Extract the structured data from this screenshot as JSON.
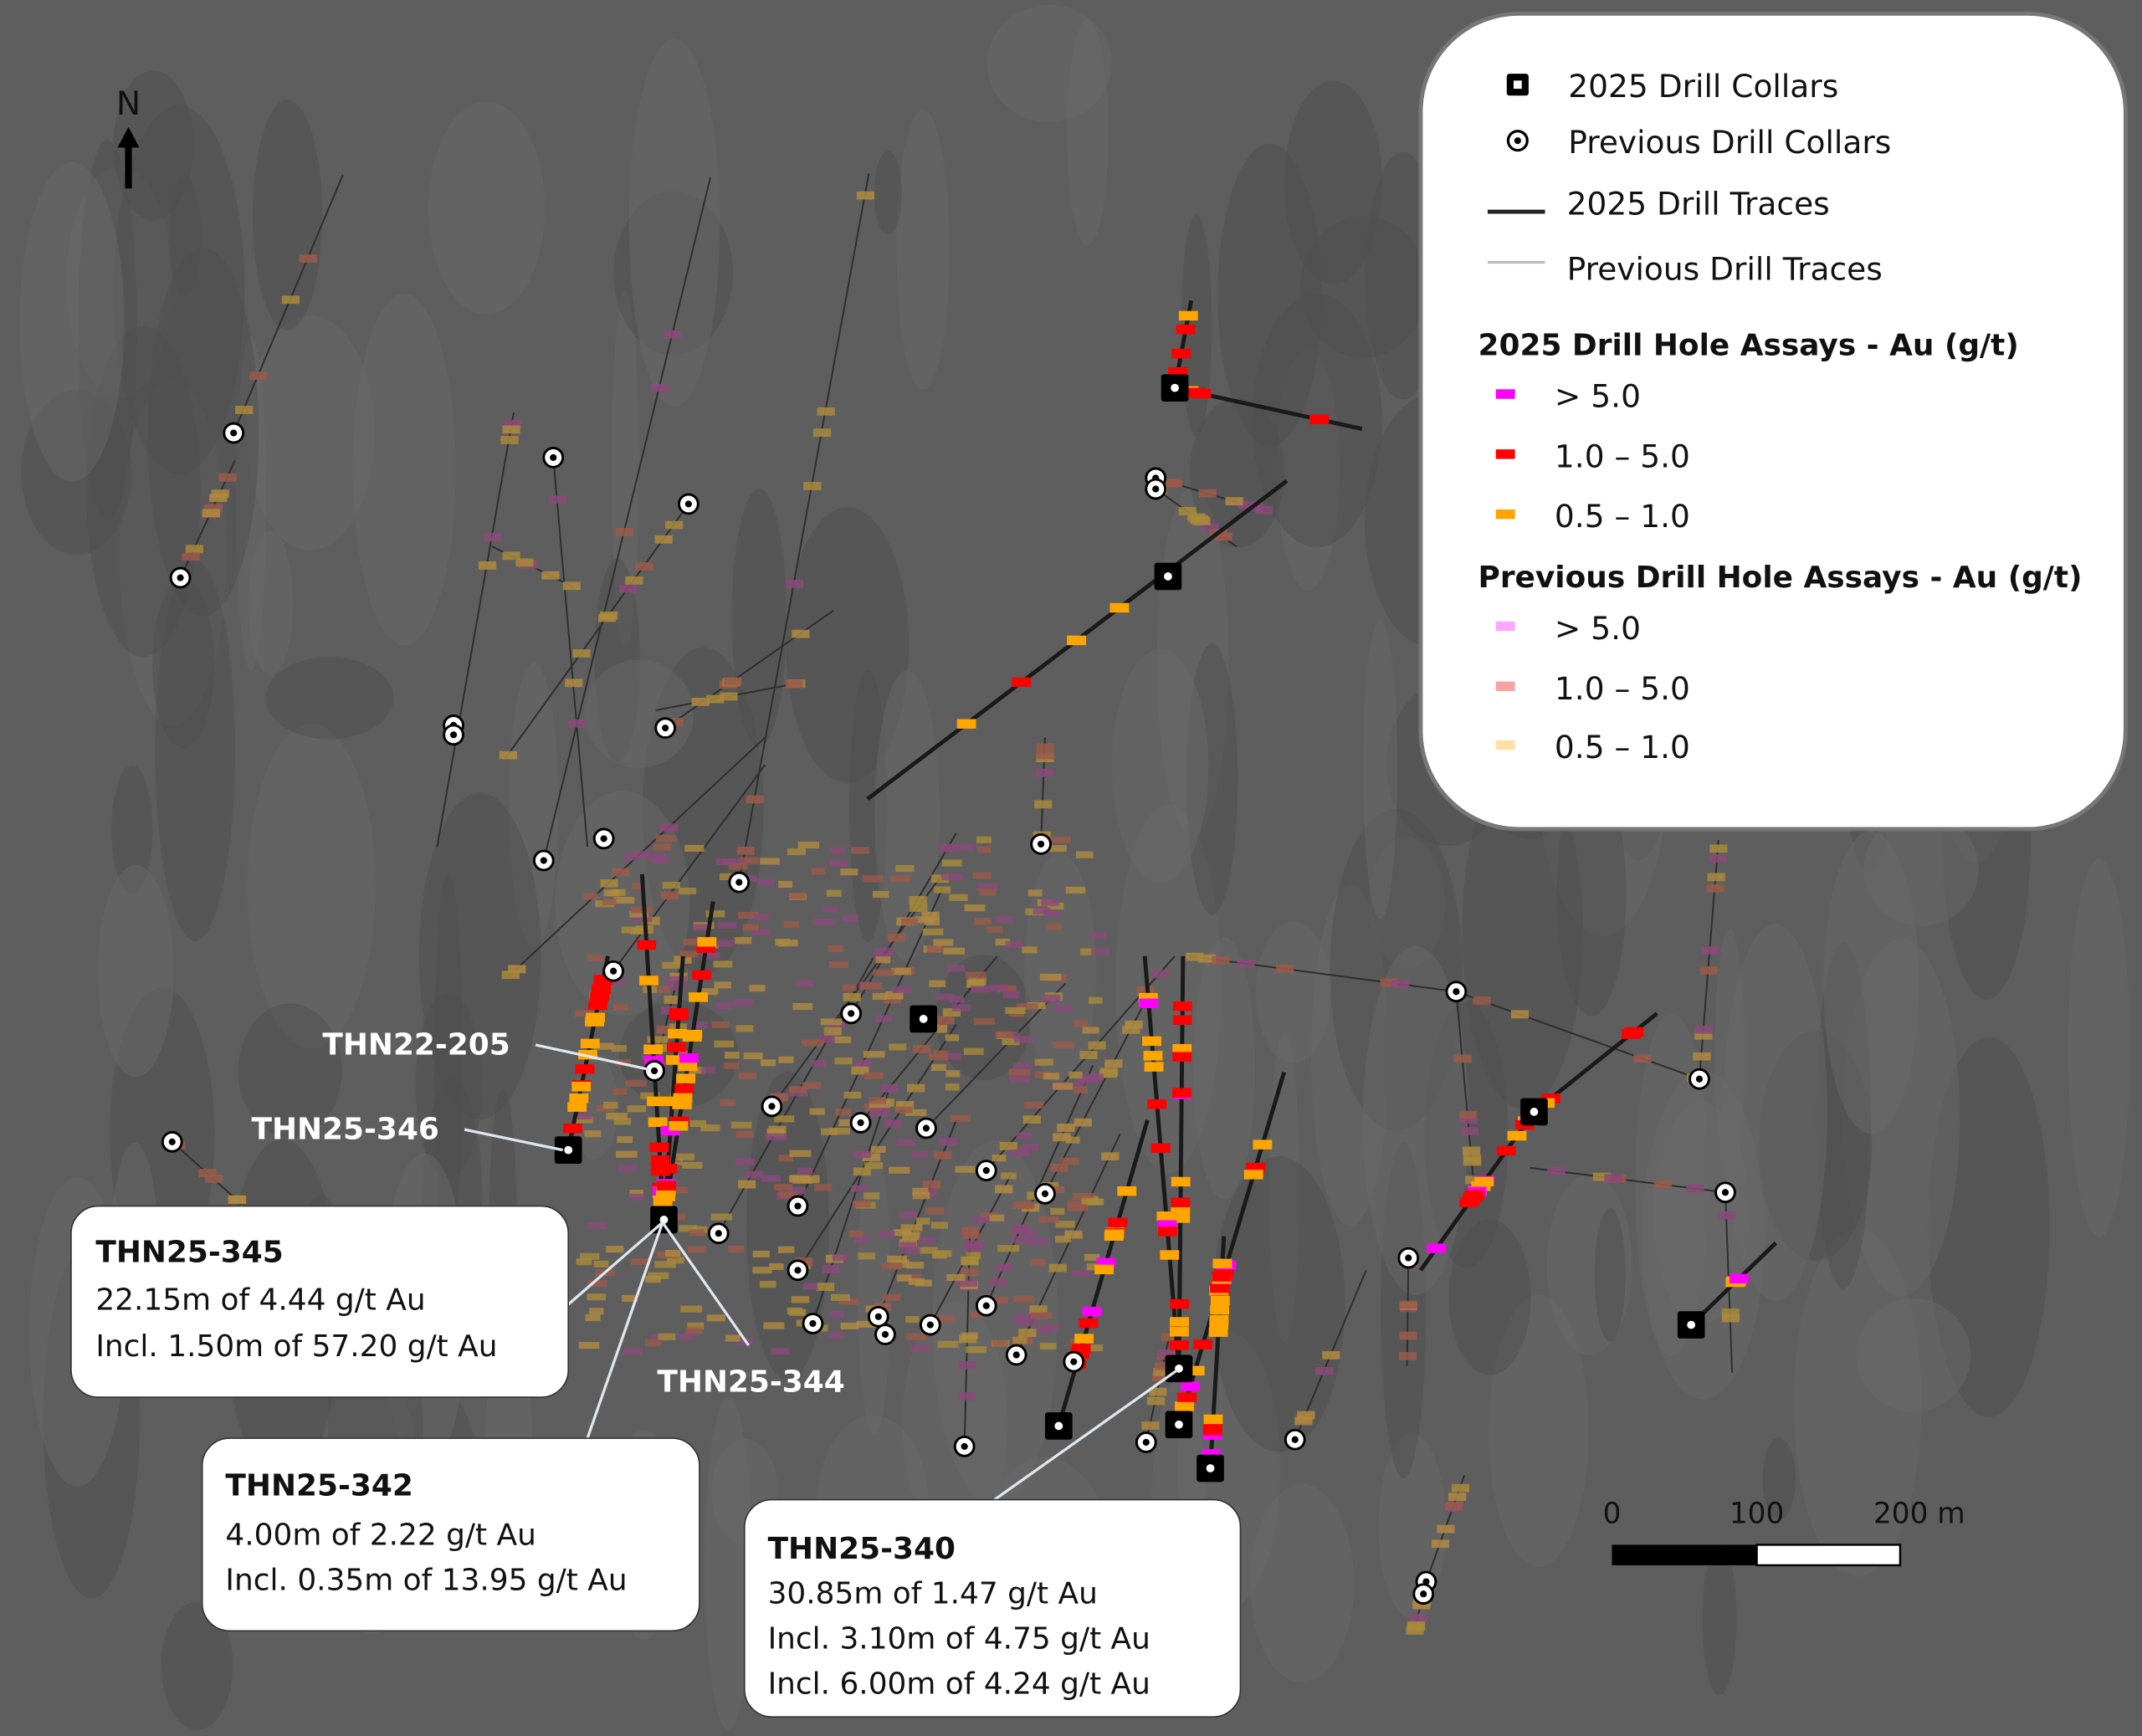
{
  "north_label": "N",
  "legend": {
    "collars_2025": "2025 Drill Collars",
    "collars_previous": "Previous Drill Collars",
    "traces_2025": "2025 Drill Traces",
    "traces_previous": "Previous Drill Traces",
    "assays_2025": {
      "heading": "2025 Drill Hole Assays - Au (g/t)",
      "items": [
        {
          "label": "> 5.0",
          "color": "#ff00ff"
        },
        {
          "label": "1.0 – 5.0",
          "color": "#ff0000"
        },
        {
          "label": "0.5 – 1.0",
          "color": "#ffa500"
        }
      ]
    },
    "assays_previous": {
      "heading": "Previous Drill Hole Assays - Au (g/t)",
      "items": [
        {
          "label": "> 5.0",
          "color": "#ffa6ff"
        },
        {
          "label": "1.0 – 5.0",
          "color": "#f7a3a3"
        },
        {
          "label": "0.5 – 1.0",
          "color": "#ffe0a6"
        }
      ]
    }
  },
  "hole_labels": {
    "thn22_205": "THN22-205",
    "thn25_346": "THN25-346",
    "thn25_344": "THN25-344"
  },
  "callouts": [
    {
      "title": "THN25-345",
      "lines": [
        "22.15m of 4.44 g/t Au",
        "Incl. 1.50m of 57.20 g/t Au"
      ]
    },
    {
      "title": "THN25-342",
      "lines": [
        "4.00m of 2.22 g/t Au",
        "Incl. 0.35m of 13.95 g/t Au"
      ]
    },
    {
      "title": "THN25-340",
      "lines": [
        "30.85m of 1.47 g/t Au",
        "Incl. 3.10m of 4.75 g/t Au",
        "Incl. 6.00m of 4.24 g/t Au"
      ]
    }
  ],
  "scale_bar": {
    "labels": [
      "0",
      "100",
      "200 m"
    ]
  },
  "colors": {
    "background": "#5e5e5e",
    "trace_2025": "#1a1a1a",
    "trace_previous": "#2e2e2e",
    "previous_assay_tint": "#8a6a3a"
  }
}
